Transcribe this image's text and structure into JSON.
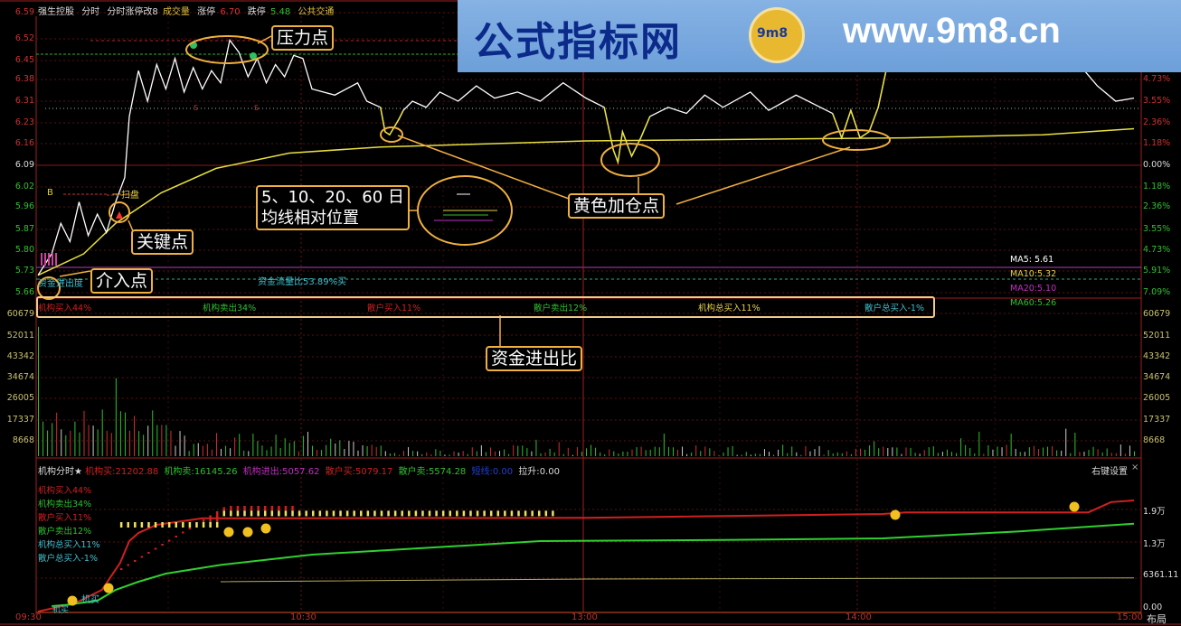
{
  "header": {
    "stock_name": "强生控股",
    "mode": "分时",
    "indicator": "分时涨停改8",
    "volume_label": "成交量",
    "limit_up_label": "涨停",
    "limit_up_value": "6.70",
    "limit_down_label": "跌停",
    "limit_down_value": "5.48",
    "sector": "公共交通"
  },
  "watermark": {
    "site_name": "公式指标网",
    "url": "www.9m8.cn",
    "logo_text": "9m8"
  },
  "price_axis": {
    "left": [
      "6.59",
      "6.52",
      "6.45",
      "6.38",
      "6.31",
      "6.23",
      "6.16",
      "6.09",
      "6.02",
      "5.96",
      "5.87",
      "5.80",
      "5.73",
      "5.66"
    ],
    "right": [
      "4.73%",
      "3.55%",
      "2.36%",
      "1.18%",
      "0.00%",
      "1.18%",
      "2.36%",
      "3.55%",
      "4.73%",
      "5.91%",
      "7.09%"
    ]
  },
  "volume_axis": [
    "60679",
    "52011",
    "43342",
    "34674",
    "26005",
    "17337",
    "8668"
  ],
  "volume_axis_right": [
    "60679",
    "52011",
    "43342",
    "34674",
    "26005",
    "17337",
    "8668"
  ],
  "chart_marks": {
    "b_label": "B",
    "sweep_label": "一扫盘",
    "fund_flow_text": "资金流量比53.89%买",
    "entry_text": "资金进出度"
  },
  "ma_legend": [
    {
      "label": "MA5:  5.61",
      "color": "#ffffff"
    },
    {
      "label": "MA10:5.32",
      "color": "#e8d048"
    },
    {
      "label": "MA20:5.10",
      "color": "#c030c0"
    },
    {
      "label": "MA60:5.26",
      "color": "#30c030"
    }
  ],
  "fund_ratio": [
    {
      "label": "机构买入44%",
      "color": "#d02020"
    },
    {
      "label": "机构卖出34%",
      "color": "#30c030"
    },
    {
      "label": "散户买入11%",
      "color": "#d02020"
    },
    {
      "label": "散户卖出12%",
      "color": "#30c030"
    },
    {
      "label": "机构总买入11%",
      "color": "#e8d048"
    },
    {
      "label": "散户总买入-1%",
      "color": "#40c0d0"
    }
  ],
  "annotations": {
    "pressure": "压力点",
    "key": "关键点",
    "entry": "介入点",
    "ma_position_line1": "5、10、20、60 日",
    "ma_position_line2": "均线相对位置",
    "yellow_add": "黄色加仓点",
    "fund_in_out": "资金进出比"
  },
  "lower_panel": {
    "title": "机构分时★",
    "stats": [
      {
        "label": "机构买:",
        "value": "21202.88",
        "color": "#d02020"
      },
      {
        "label": "机构卖:",
        "value": "16145.26",
        "color": "#30c030"
      },
      {
        "label": "机构进出:",
        "value": "5057.62",
        "color": "#c030c0"
      },
      {
        "label": "散户买:",
        "value": "5079.17",
        "color": "#d02020"
      },
      {
        "label": "散户卖:",
        "value": "5574.28",
        "color": "#30c030"
      },
      {
        "label": "短线:",
        "value": "0.00",
        "color": "#2040d0"
      },
      {
        "label": "拉升:",
        "value": "0.00",
        "color": "#dddddd"
      }
    ],
    "settings_label": "右键设置",
    "close_label": "×",
    "legend": [
      {
        "label": "机构买入44%",
        "color": "#d02020"
      },
      {
        "label": "机构卖出34%",
        "color": "#30c030"
      },
      {
        "label": "散户买入11%",
        "color": "#d02020"
      },
      {
        "label": "散户卖出12%",
        "color": "#30c030"
      },
      {
        "label": "机构总买入11%",
        "color": "#40c0d0"
      },
      {
        "label": "散户总买入-1%",
        "color": "#40c0d0"
      }
    ],
    "axis_right": [
      "1.9万",
      "1.3万",
      "6361.11",
      "0.00"
    ],
    "marks": {
      "buy1": "机买",
      "buy0": "机买"
    }
  },
  "time_axis": [
    "09:30",
    "10:30",
    "13:00",
    "14:00",
    "15:00"
  ],
  "layout_button": "布局",
  "colors": {
    "price_line": "#ffffff",
    "avg_line": "#e8e040",
    "up": "#d02020",
    "down": "#30c030",
    "annotation": "#f0b040"
  },
  "price_series": [
    [
      0,
      5.73
    ],
    [
      3,
      5.8
    ],
    [
      5,
      5.9
    ],
    [
      7,
      5.84
    ],
    [
      9,
      5.97
    ],
    [
      11,
      5.86
    ],
    [
      13,
      5.93
    ],
    [
      15,
      5.87
    ],
    [
      17,
      5.97
    ],
    [
      19,
      6.05
    ],
    [
      20,
      6.25
    ],
    [
      22,
      6.4
    ],
    [
      24,
      6.3
    ],
    [
      26,
      6.42
    ],
    [
      28,
      6.34
    ],
    [
      30,
      6.44
    ],
    [
      32,
      6.33
    ],
    [
      34,
      6.41
    ],
    [
      36,
      6.34
    ],
    [
      38,
      6.4
    ],
    [
      40,
      6.36
    ],
    [
      42,
      6.5
    ],
    [
      44,
      6.46
    ],
    [
      46,
      6.38
    ],
    [
      48,
      6.44
    ],
    [
      50,
      6.36
    ],
    [
      52,
      6.42
    ],
    [
      54,
      6.38
    ],
    [
      56,
      6.45
    ],
    [
      58,
      6.44
    ],
    [
      60,
      6.34
    ],
    [
      65,
      6.32
    ],
    [
      70,
      6.36
    ],
    [
      72,
      6.3
    ],
    [
      75,
      6.28
    ],
    [
      76,
      6.2
    ],
    [
      77,
      6.19
    ],
    [
      79,
      6.24
    ],
    [
      80,
      6.27
    ],
    [
      82,
      6.3
    ],
    [
      85,
      6.28
    ],
    [
      88,
      6.33
    ],
    [
      92,
      6.3
    ],
    [
      96,
      6.35
    ],
    [
      100,
      6.31
    ],
    [
      105,
      6.33
    ],
    [
      110,
      6.3
    ],
    [
      115,
      6.36
    ],
    [
      120,
      6.31
    ],
    [
      124,
      6.28
    ],
    [
      126,
      6.14
    ],
    [
      127,
      6.1
    ],
    [
      128,
      6.2
    ],
    [
      130,
      6.12
    ],
    [
      132,
      6.18
    ],
    [
      134,
      6.25
    ],
    [
      138,
      6.28
    ],
    [
      142,
      6.26
    ],
    [
      146,
      6.32
    ],
    [
      150,
      6.28
    ],
    [
      156,
      6.33
    ],
    [
      160,
      6.27
    ],
    [
      166,
      6.32
    ],
    [
      170,
      6.29
    ],
    [
      174,
      6.26
    ],
    [
      176,
      6.18
    ],
    [
      178,
      6.27
    ],
    [
      180,
      6.18
    ],
    [
      182,
      6.2
    ],
    [
      184,
      6.28
    ],
    [
      186,
      6.42
    ],
    [
      188,
      6.55
    ],
    [
      190,
      6.6
    ],
    [
      198,
      6.58
    ],
    [
      210,
      6.6
    ],
    [
      226,
      6.55
    ],
    [
      228,
      6.42
    ],
    [
      232,
      6.35
    ],
    [
      236,
      6.3
    ],
    [
      240,
      6.31
    ]
  ],
  "avg_series": [
    [
      0,
      5.73
    ],
    [
      10,
      5.8
    ],
    [
      17,
      5.9
    ],
    [
      27,
      6.0
    ],
    [
      39,
      6.08
    ],
    [
      55,
      6.13
    ],
    [
      75,
      6.15
    ],
    [
      120,
      6.17
    ],
    [
      190,
      6.18
    ],
    [
      220,
      6.19
    ],
    [
      240,
      6.21
    ]
  ]
}
